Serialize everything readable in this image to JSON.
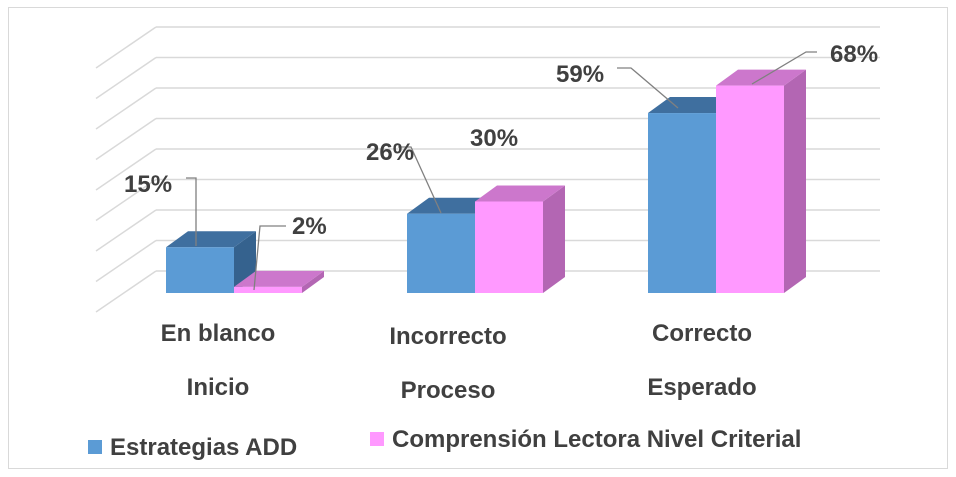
{
  "chart_data": {
    "type": "bar",
    "title": "",
    "categories": [
      [
        "En blanco",
        "Inicio"
      ],
      [
        "Incorrecto",
        "Proceso"
      ],
      [
        "Correcto",
        "Esperado"
      ]
    ],
    "series": [
      {
        "name": "Estrategias ADD",
        "values": [
          15,
          26,
          59
        ],
        "labels": [
          "15%",
          "26%",
          "59%"
        ]
      },
      {
        "name": "Comprensión Lectora Nivel Criterial",
        "values": [
          2,
          30,
          68
        ],
        "labels": [
          "2%",
          "30%",
          "68%"
        ]
      }
    ],
    "ylim": [
      0,
      80
    ],
    "grid": true,
    "three_d": true,
    "legend_position": "bottom",
    "colors": {
      "series": [
        "#5b9bd5",
        "#ff99ff"
      ],
      "series_top": [
        "#3f6f9f",
        "#cc77cc"
      ],
      "series_side": [
        "#35628e",
        "#b366b3"
      ],
      "gridline": "#d9d9d9",
      "label": "#404040",
      "leader": "#808080"
    }
  }
}
